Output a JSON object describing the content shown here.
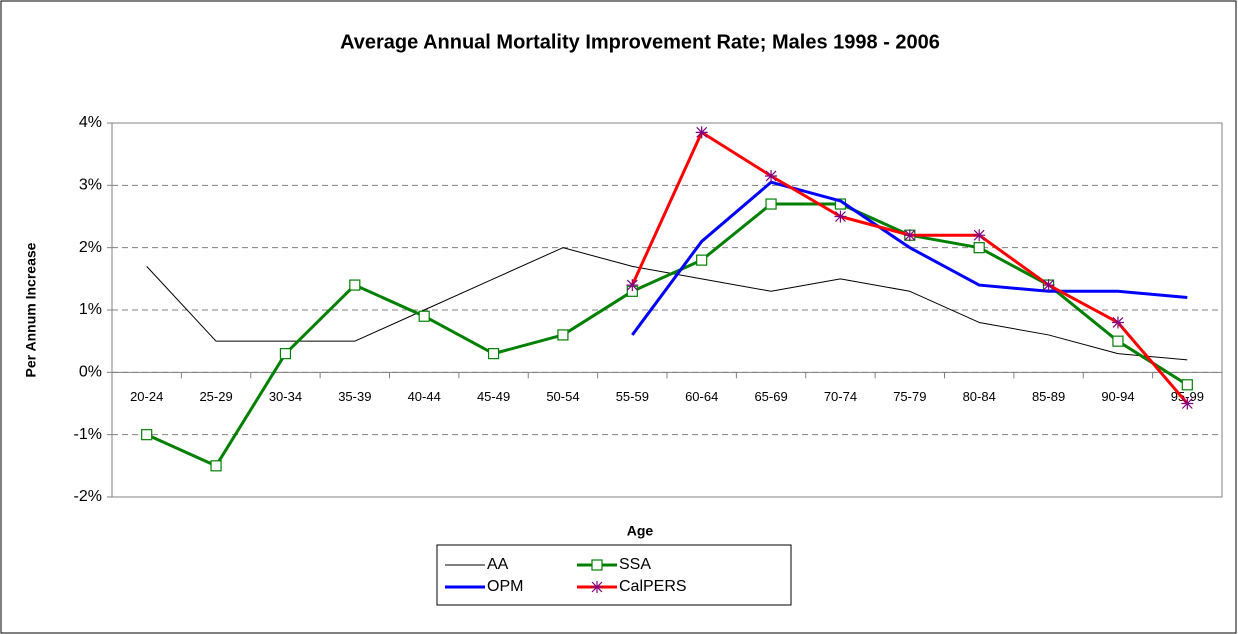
{
  "chart_data": {
    "type": "line",
    "title": "Average Annual Mortality Improvement Rate; Males 1998 - 2006",
    "x_label": "Age",
    "y_label": "Per Annum Increase",
    "categories": [
      "20-24",
      "25-29",
      "30-34",
      "35-39",
      "40-44",
      "45-49",
      "50-54",
      "55-59",
      "60-64",
      "65-69",
      "70-74",
      "75-79",
      "80-84",
      "85-89",
      "90-94",
      "95-99"
    ],
    "series": [
      {
        "name": "AA",
        "color": "#000000",
        "width": 1,
        "marker": "none",
        "values": [
          1.7,
          0.5,
          0.5,
          0.5,
          1.0,
          1.5,
          2.0,
          1.7,
          1.5,
          1.3,
          1.5,
          1.3,
          0.8,
          0.6,
          0.3,
          0.2
        ]
      },
      {
        "name": "SSA",
        "color": "#008000",
        "width": 3,
        "marker": "square",
        "values": [
          -1.0,
          -1.5,
          0.3,
          1.4,
          0.9,
          0.3,
          0.6,
          1.3,
          1.8,
          2.7,
          2.7,
          2.2,
          2.0,
          1.4,
          0.5,
          -0.2
        ]
      },
      {
        "name": "OPM",
        "color": "#0000ff",
        "width": 3,
        "marker": "none",
        "values": [
          null,
          null,
          null,
          null,
          null,
          null,
          null,
          0.6,
          2.1,
          3.05,
          2.75,
          2.0,
          1.4,
          1.3,
          1.3,
          1.2
        ]
      },
      {
        "name": "CalPERS",
        "color": "#ff0000",
        "width": 3,
        "marker": "star",
        "marker_color": "#800080",
        "values": [
          null,
          null,
          null,
          null,
          null,
          null,
          null,
          1.4,
          3.85,
          3.15,
          2.5,
          2.2,
          2.2,
          1.4,
          0.8,
          -0.5
        ]
      }
    ],
    "ylim": [
      -2,
      4
    ],
    "yticks": [
      {
        "value": -2,
        "label": "-2%"
      },
      {
        "value": -1,
        "label": "-1%"
      },
      {
        "value": 0,
        "label": "0%"
      },
      {
        "value": 1,
        "label": "1%"
      },
      {
        "value": 2,
        "label": "2%"
      },
      {
        "value": 3,
        "label": "3%"
      },
      {
        "value": 4,
        "label": "4%"
      }
    ],
    "grid": true,
    "legend": "bottom"
  }
}
